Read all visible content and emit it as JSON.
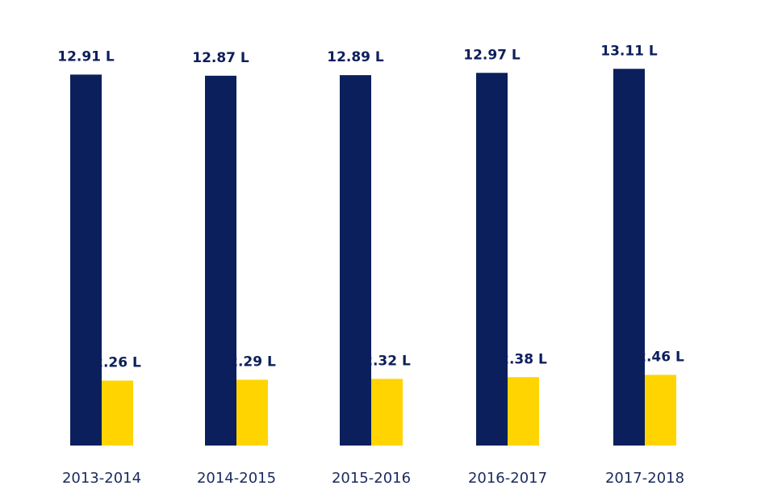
{
  "chart_data": {
    "type": "bar",
    "categories": [
      "2013-2014",
      "2014-2015",
      "2015-2016",
      "2016-2017",
      "2017-2018"
    ],
    "series": [
      {
        "values": [
          12.91,
          12.87,
          12.89,
          12.97,
          13.11
        ],
        "labels": [
          "12.91 L",
          "12.87 L",
          "12.89 L",
          "12.97 L",
          "13.11 L"
        ],
        "color": "#0a1f5c"
      },
      {
        "values": [
          2.26,
          2.29,
          2.32,
          2.38,
          2.46
        ],
        "labels": [
          "2.26 L",
          "2.29 L",
          "2.32 L",
          "2.38 L",
          "2.46 L"
        ],
        "color": "#ffd400"
      }
    ],
    "title": "",
    "xlabel": "",
    "ylabel": "",
    "grid": false,
    "legend": "none"
  }
}
